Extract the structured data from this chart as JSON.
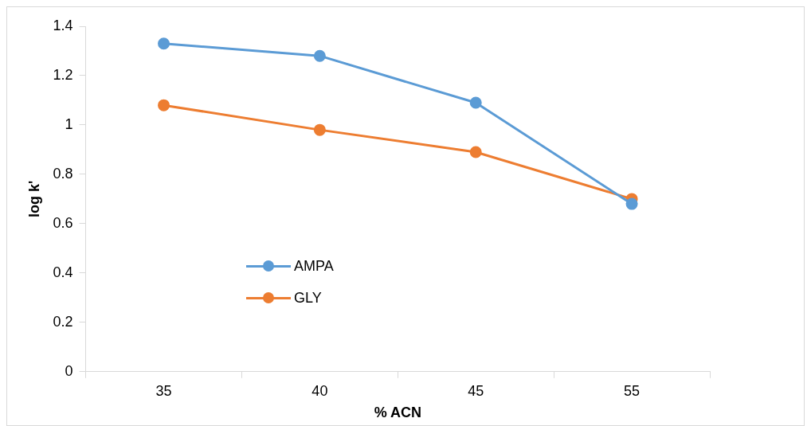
{
  "chart_data": {
    "type": "line",
    "xlabel": "% ACN",
    "ylabel": "log k'",
    "categories": [
      "35",
      "40",
      "45",
      "55"
    ],
    "series": [
      {
        "name": "AMPA",
        "color": "#5b9bd5",
        "values": [
          1.33,
          1.28,
          1.09,
          0.68
        ]
      },
      {
        "name": "GLY",
        "color": "#ed7d31",
        "values": [
          1.08,
          0.98,
          0.89,
          0.7
        ]
      }
    ],
    "ylim": [
      0,
      1.4
    ],
    "yticks": [
      0,
      0.2,
      0.4,
      0.6,
      0.8,
      1,
      1.2,
      1.4
    ],
    "grid": false,
    "legend": "left",
    "marker": "circle",
    "line_style": "solid"
  }
}
